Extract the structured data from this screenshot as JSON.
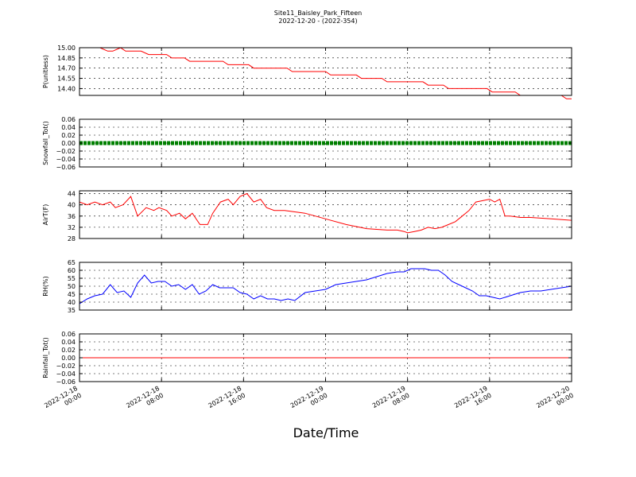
{
  "figure": {
    "title_line1": "Site11_Baisley_Park_Fifteen",
    "title_line2": "2022-12-20 - (2022-354)",
    "xlabel": "Date/Time"
  },
  "x_axis": {
    "range": [
      "2022-12-18 00:00",
      "2022-12-20 00:00"
    ],
    "ticks": [
      {
        "value": "2022-12-18 00:00",
        "line1": "2022-12-18",
        "line2": "00:00"
      },
      {
        "value": "2022-12-18 08:00",
        "line1": "2022-12-18",
        "line2": "08:00"
      },
      {
        "value": "2022-12-18 16:00",
        "line1": "2022-12-18",
        "line2": "16:00"
      },
      {
        "value": "2022-12-19 00:00",
        "line1": "2022-12-19",
        "line2": "00:00"
      },
      {
        "value": "2022-12-19 08:00",
        "line1": "2022-12-19",
        "line2": "08:00"
      },
      {
        "value": "2022-12-19 16:00",
        "line1": "2022-12-19",
        "line2": "16:00"
      },
      {
        "value": "2022-12-20 00:00",
        "line1": "2022-12-20",
        "line2": "00:00"
      }
    ]
  },
  "chart_data": [
    {
      "type": "line",
      "ylabel": "P(unitless)",
      "ylim": [
        14.3,
        15.0
      ],
      "yticks": [
        14.4,
        14.55,
        14.7,
        14.85,
        15.0
      ],
      "ytick_labels": [
        "14.40",
        "14.55",
        "14.70",
        "14.85",
        "15.00"
      ],
      "grid": true,
      "color": "#ff0000",
      "series": [
        {
          "x": [
            "2022-12-18 02:00",
            "2022-12-18 02:45",
            "2022-12-18 03:15",
            "2022-12-18 04:00",
            "2022-12-18 04:30",
            "2022-12-18 06:00",
            "2022-12-18 06:45",
            "2022-12-18 08:30",
            "2022-12-18 09:00",
            "2022-12-18 10:15",
            "2022-12-18 10:45",
            "2022-12-18 14:00",
            "2022-12-18 14:30",
            "2022-12-18 16:30",
            "2022-12-18 17:00",
            "2022-12-18 20:15",
            "2022-12-18 20:45",
            "2022-12-19 00:00",
            "2022-12-19 00:30",
            "2022-12-19 03:00",
            "2022-12-19 03:30",
            "2022-12-19 05:30",
            "2022-12-19 06:00",
            "2022-12-19 09:30",
            "2022-12-19 10:00",
            "2022-12-19 11:30",
            "2022-12-19 12:00",
            "2022-12-19 15:45",
            "2022-12-19 16:15",
            "2022-12-19 18:30",
            "2022-12-19 19:00",
            "2022-12-19 23:00",
            "2022-12-19 23:30",
            "2022-12-20 00:00"
          ],
          "y": [
            15.0,
            14.95,
            14.95,
            15.0,
            14.95,
            14.95,
            14.9,
            14.9,
            14.85,
            14.85,
            14.8,
            14.8,
            14.75,
            14.75,
            14.7,
            14.7,
            14.65,
            14.65,
            14.6,
            14.6,
            14.55,
            14.55,
            14.5,
            14.5,
            14.45,
            14.45,
            14.4,
            14.4,
            14.35,
            14.35,
            14.3,
            14.3,
            14.25,
            14.25
          ]
        }
      ]
    },
    {
      "type": "line",
      "ylabel": "Snowfall_Tot()",
      "ylim": [
        -0.06,
        0.06
      ],
      "yticks": [
        -0.06,
        -0.04,
        -0.02,
        0.0,
        0.02,
        0.04,
        0.06
      ],
      "ytick_labels": [
        "−0.06",
        "−0.04",
        "−0.02",
        "0.00",
        "0.02",
        "0.04",
        "0.06"
      ],
      "grid": true,
      "color": "#008000",
      "markers": true,
      "series": [
        {
          "x": [
            "2022-12-18 00:00",
            "2022-12-20 00:00"
          ],
          "y": [
            0.0,
            0.0
          ]
        }
      ]
    },
    {
      "type": "line",
      "ylabel": "AirT(F)",
      "ylim": [
        28,
        45
      ],
      "yticks": [
        28,
        32,
        36,
        40,
        44
      ],
      "ytick_labels": [
        "28",
        "32",
        "36",
        "40",
        "44"
      ],
      "grid": true,
      "color": "#ff0000",
      "series": [
        {
          "x": [
            "2022-12-18 00:00",
            "2022-12-18 00:45",
            "2022-12-18 01:30",
            "2022-12-18 02:15",
            "2022-12-18 03:00",
            "2022-12-18 03:30",
            "2022-12-18 04:15",
            "2022-12-18 05:00",
            "2022-12-18 05:40",
            "2022-12-18 06:30",
            "2022-12-18 07:15",
            "2022-12-18 07:45",
            "2022-12-18 08:30",
            "2022-12-18 09:00",
            "2022-12-18 09:45",
            "2022-12-18 10:20",
            "2022-12-18 11:00",
            "2022-12-18 11:45",
            "2022-12-18 12:30",
            "2022-12-18 13:00",
            "2022-12-18 13:45",
            "2022-12-18 14:30",
            "2022-12-18 15:00",
            "2022-12-18 15:40",
            "2022-12-18 16:20",
            "2022-12-18 17:00",
            "2022-12-18 17:40",
            "2022-12-18 18:15",
            "2022-12-18 19:00",
            "2022-12-18 20:00",
            "2022-12-18 21:00",
            "2022-12-18 22:00",
            "2022-12-19 00:00",
            "2022-12-19 02:00",
            "2022-12-19 04:00",
            "2022-12-19 06:00",
            "2022-12-19 07:00",
            "2022-12-19 07:40",
            "2022-12-19 08:00",
            "2022-12-19 08:40",
            "2022-12-19 09:20",
            "2022-12-19 10:00",
            "2022-12-19 10:40",
            "2022-12-19 11:20",
            "2022-12-19 12:00",
            "2022-12-19 12:40",
            "2022-12-19 13:20",
            "2022-12-19 14:00",
            "2022-12-19 14:40",
            "2022-12-19 15:20",
            "2022-12-19 16:00",
            "2022-12-19 16:30",
            "2022-12-19 17:00",
            "2022-12-19 17:30",
            "2022-12-19 18:00",
            "2022-12-19 19:00",
            "2022-12-19 20:00",
            "2022-12-19 22:00",
            "2022-12-20 00:00"
          ],
          "y": [
            41,
            40,
            41,
            40,
            41,
            39,
            40,
            43,
            36,
            39,
            38,
            39,
            38,
            36,
            37,
            35,
            37,
            33,
            33,
            37,
            41,
            42,
            40,
            43,
            44,
            41,
            42,
            39,
            38,
            38,
            37.5,
            37,
            35,
            33,
            31.5,
            31,
            31,
            30.5,
            30,
            30.5,
            31,
            32,
            31.5,
            32,
            33,
            34,
            36,
            38,
            41,
            41.5,
            42,
            41,
            42,
            36,
            36,
            35.5,
            35.5,
            35,
            34.5
          ]
        }
      ]
    },
    {
      "type": "line",
      "ylabel": "RH(%)",
      "ylim": [
        35,
        65
      ],
      "yticks": [
        35,
        40,
        45,
        50,
        55,
        60,
        65
      ],
      "ytick_labels": [
        "35",
        "40",
        "45",
        "50",
        "55",
        "60",
        "65"
      ],
      "grid": true,
      "color": "#0000ff",
      "series": [
        {
          "x": [
            "2022-12-18 00:00",
            "2022-12-18 00:45",
            "2022-12-18 01:30",
            "2022-12-18 02:15",
            "2022-12-18 03:00",
            "2022-12-18 03:40",
            "2022-12-18 04:20",
            "2022-12-18 05:00",
            "2022-12-18 05:40",
            "2022-12-18 06:20",
            "2022-12-18 07:00",
            "2022-12-18 07:40",
            "2022-12-18 08:20",
            "2022-12-18 09:00",
            "2022-12-18 09:40",
            "2022-12-18 10:20",
            "2022-12-18 11:00",
            "2022-12-18 11:40",
            "2022-12-18 12:20",
            "2022-12-18 13:00",
            "2022-12-18 13:40",
            "2022-12-18 14:20",
            "2022-12-18 15:00",
            "2022-12-18 15:40",
            "2022-12-18 16:20",
            "2022-12-18 17:00",
            "2022-12-18 17:40",
            "2022-12-18 18:20",
            "2022-12-18 19:00",
            "2022-12-18 19:40",
            "2022-12-18 20:20",
            "2022-12-18 21:00",
            "2022-12-18 22:00",
            "2022-12-18 23:00",
            "2022-12-19 00:00",
            "2022-12-19 01:00",
            "2022-12-19 02:00",
            "2022-12-19 03:00",
            "2022-12-19 04:00",
            "2022-12-19 05:00",
            "2022-12-19 06:00",
            "2022-12-19 07:00",
            "2022-12-19 07:40",
            "2022-12-19 08:20",
            "2022-12-19 09:00",
            "2022-12-19 09:40",
            "2022-12-19 10:20",
            "2022-12-19 11:00",
            "2022-12-19 11:40",
            "2022-12-19 12:20",
            "2022-12-19 13:00",
            "2022-12-19 13:40",
            "2022-12-19 14:20",
            "2022-12-19 15:00",
            "2022-12-19 15:40",
            "2022-12-19 16:20",
            "2022-12-19 17:00",
            "2022-12-19 18:00",
            "2022-12-19 19:00",
            "2022-12-19 20:00",
            "2022-12-19 21:00",
            "2022-12-19 22:00",
            "2022-12-19 23:00",
            "2022-12-20 00:00"
          ],
          "y": [
            39,
            42,
            44,
            45,
            51,
            46,
            47,
            43,
            52,
            57,
            52,
            53,
            53,
            50,
            51,
            48,
            51,
            45,
            47,
            51,
            49,
            49,
            49,
            46,
            45,
            42,
            44,
            42,
            42,
            41,
            42,
            41,
            46,
            47,
            48,
            51,
            52,
            53,
            54,
            56,
            58,
            59,
            59,
            61,
            61,
            61,
            60,
            60,
            57,
            53,
            51,
            49,
            47,
            44,
            44,
            43,
            42,
            44,
            46,
            47,
            47,
            48,
            49,
            50
          ]
        }
      ]
    },
    {
      "type": "line",
      "ylabel": "Rainfall_Tot()",
      "ylim": [
        -0.06,
        0.06
      ],
      "yticks": [
        -0.06,
        -0.04,
        -0.02,
        0.0,
        0.02,
        0.04,
        0.06
      ],
      "ytick_labels": [
        "−0.06",
        "−0.04",
        "−0.02",
        "0.00",
        "0.02",
        "0.04",
        "0.06"
      ],
      "grid": true,
      "color": "#ff0000",
      "series": [
        {
          "x": [
            "2022-12-18 00:00",
            "2022-12-20 00:00"
          ],
          "y": [
            0.0,
            0.0
          ]
        }
      ]
    }
  ]
}
